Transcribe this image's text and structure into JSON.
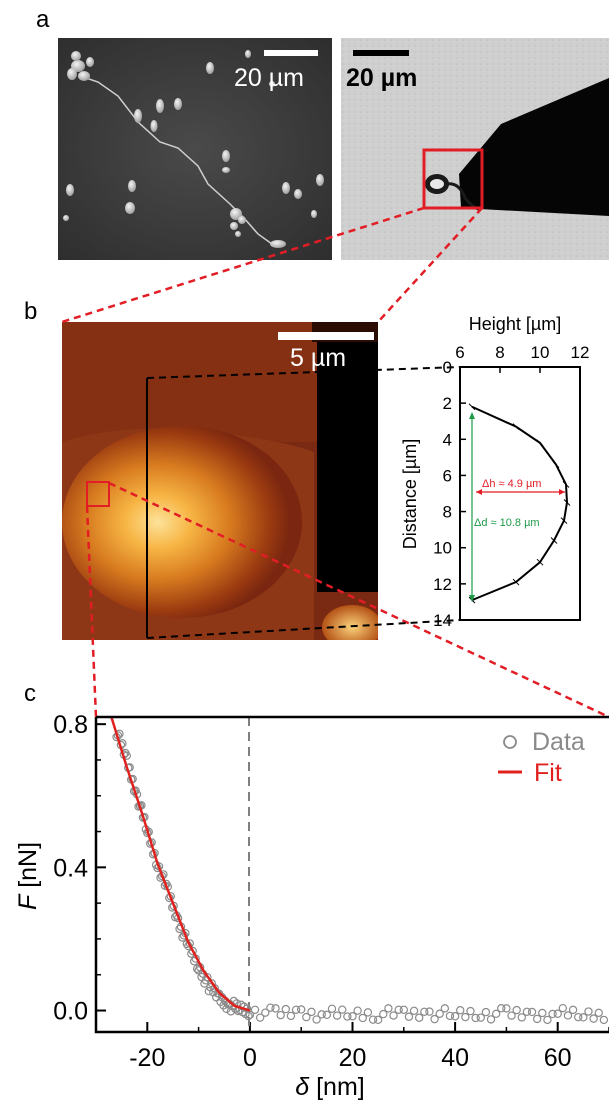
{
  "panels": {
    "a": {
      "letter": "a",
      "sem_scale": "20 µm",
      "optical_scale": "20 µm"
    },
    "b": {
      "letter": "b",
      "afm_scale": "5 µm",
      "profile": {
        "x_title": "Height [µm]",
        "y_title": "Distance [µm]",
        "x_ticks": [
          "6",
          "8",
          "10",
          "12"
        ],
        "y_ticks": [
          "0",
          "2",
          "4",
          "6",
          "8",
          "10",
          "12",
          "14"
        ],
        "dh_label": "Δh ≈ 4.9 µm",
        "dd_label": "Δd ≈ 10.8 µm"
      }
    },
    "c": {
      "letter": "c"
    }
  },
  "colors": {
    "highlight_red": "#e21d25",
    "annotation_green": "#1f9a48",
    "data_gray": "#8a8a8a",
    "fit_red": "#e0221f"
  },
  "chart_data": [
    {
      "type": "line",
      "panel": "b",
      "xlabel": "Height [µm]",
      "ylabel": "Distance [µm]",
      "xlim": [
        6,
        12
      ],
      "ylim": [
        14,
        0
      ],
      "x_ticks": [
        6,
        8,
        10,
        12
      ],
      "y_ticks": [
        0,
        2,
        4,
        6,
        8,
        10,
        12,
        14
      ],
      "series": [
        {
          "x": [
            6.6,
            8.8,
            10.0,
            10.8,
            11.3,
            11.35,
            11.2,
            10.7,
            10.0,
            8.8,
            6.6
          ],
          "y": [
            2.2,
            3.3,
            4.2,
            5.4,
            6.5,
            7.5,
            8.5,
            9.6,
            10.8,
            11.9,
            12.9
          ]
        }
      ],
      "annotations": [
        "Δh ≈ 4.9 µm",
        "Δd ≈ 10.8 µm"
      ]
    },
    {
      "type": "scatter",
      "panel": "c",
      "xlabel": "δ [nm]",
      "ylabel": "F [nN]",
      "xlim": [
        -30,
        70
      ],
      "ylim": [
        -0.06,
        0.82
      ],
      "x_ticks": [
        -20,
        0,
        20,
        40,
        60
      ],
      "y_ticks": [
        0.0,
        0.4,
        0.8
      ],
      "y_tick_labels": [
        "0.0",
        "0.4",
        "0.8"
      ],
      "x_tick_labels": [
        "-20",
        "0",
        "20",
        "40",
        "60"
      ],
      "legend": [
        "Data",
        "Fit"
      ],
      "legend_position": "top-right",
      "contact_point": 0,
      "series": [
        {
          "name": "Data",
          "x": [
            -26,
            -24,
            -22,
            -20,
            -18,
            -16,
            -14,
            -12,
            -10,
            -8,
            -6,
            -4,
            -2,
            0,
            5,
            10,
            15,
            20,
            25,
            30,
            35,
            40,
            45,
            50,
            55,
            60,
            65,
            70
          ],
          "y": [
            0.78,
            0.7,
            0.6,
            0.5,
            0.41,
            0.33,
            0.25,
            0.18,
            0.12,
            0.07,
            0.035,
            0.015,
            0.005,
            0.0,
            -0.01,
            -0.005,
            -0.012,
            -0.008,
            -0.01,
            -0.01,
            -0.007,
            -0.012,
            -0.008,
            -0.01,
            -0.012,
            -0.009,
            -0.011,
            -0.01
          ]
        },
        {
          "name": "Fit",
          "x": [
            -27,
            -24,
            -21,
            -18,
            -15,
            -12,
            -9,
            -6,
            -3,
            0
          ],
          "y": [
            0.82,
            0.68,
            0.55,
            0.41,
            0.3,
            0.19,
            0.11,
            0.05,
            0.013,
            0.0
          ]
        }
      ]
    }
  ]
}
